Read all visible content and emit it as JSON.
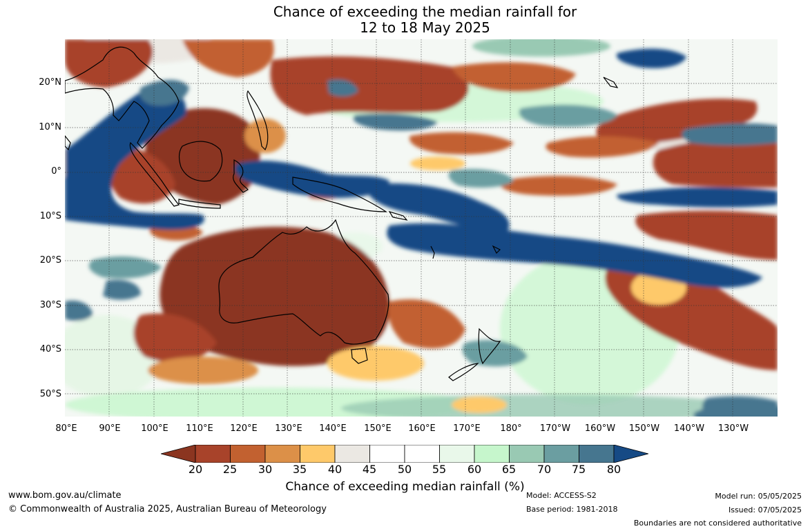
{
  "title_line1": "Chance of exceeding the median rainfall for",
  "title_line2": "12 to 18 May 2025",
  "lat_labels": [
    "20°N",
    "10°N",
    "0°",
    "10°S",
    "20°S",
    "30°S",
    "40°S",
    "50°S"
  ],
  "lon_labels": [
    "80°E",
    "90°E",
    "100°E",
    "110°E",
    "120°E",
    "130°E",
    "140°E",
    "150°E",
    "160°E",
    "170°E",
    "180°",
    "170°W",
    "160°W",
    "150°W",
    "140°W",
    "130°W"
  ],
  "colorbar": {
    "ticks": [
      "20",
      "25",
      "30",
      "35",
      "40",
      "45",
      "50",
      "55",
      "60",
      "65",
      "70",
      "75",
      "80"
    ],
    "under_color": "#8b3520",
    "over_color": "#164a85",
    "colors": [
      "#a8432a",
      "#c26130",
      "#dc9048",
      "#fec96a",
      "#ebe8e3",
      "#ffffff",
      "#ffffff",
      "#e9f8ea",
      "#c6f6cc",
      "#99c9b3",
      "#6b9ea1",
      "#46768f"
    ],
    "title": "Chance of exceeding median rainfall (%)"
  },
  "footer": {
    "website": "www.bom.gov.au/climate",
    "copyright": "© Commonwealth of Australia 2025, Australian Bureau of Meteorology",
    "model": "Model: ACCESS-S2",
    "base_period": "Base period: 1981-2018",
    "model_run": "Model run: 05/05/2025",
    "issued": "Issued: 07/05/2025",
    "disclaimer": "Boundaries are not considered authoritative"
  }
}
